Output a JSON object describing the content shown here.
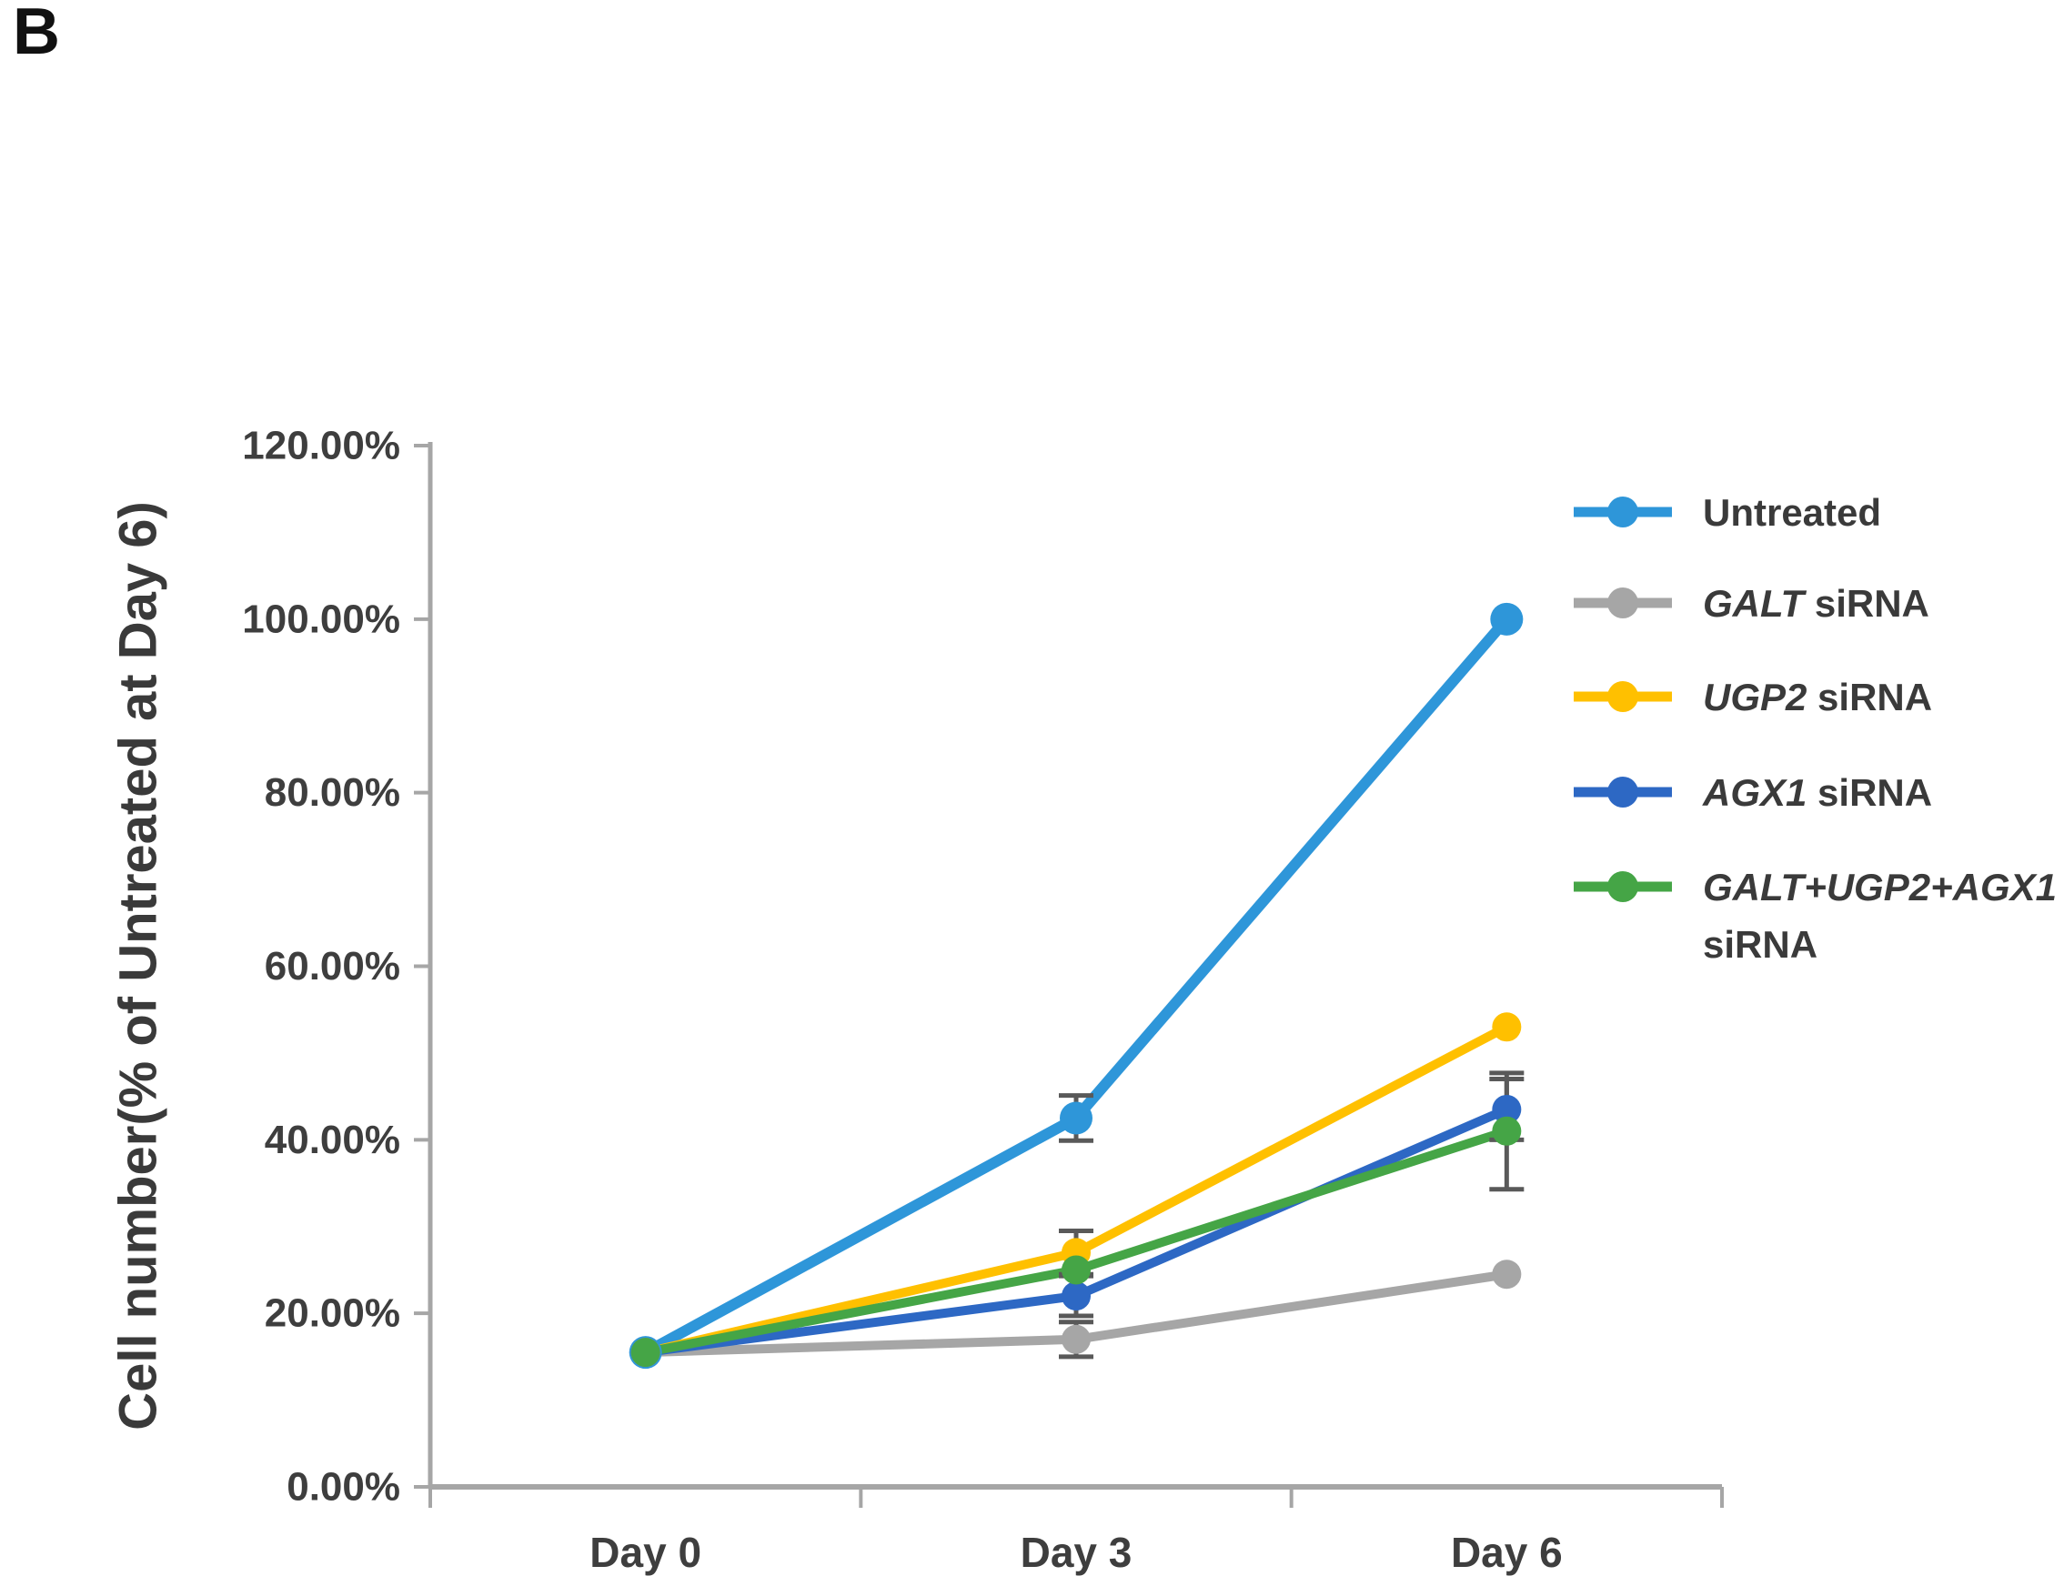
{
  "panel_label": "B",
  "figure": {
    "background": "#FFFFFF",
    "axis_color": "#A6A6A6",
    "error_bar_color": "#595959",
    "text_color": "#3E3E3E",
    "title_color": "#3A3A3A"
  },
  "chart_data": {
    "type": "line",
    "title": "",
    "xlabel": "",
    "ylabel": "Cell number(% of Untreated at Day 6)",
    "categories": [
      "Day 0",
      "Day 3",
      "Day 6"
    ],
    "ylim": [
      0,
      120
    ],
    "ytick_step": 20,
    "ytick_labels": [
      "0.00%",
      "20.00%",
      "40.00%",
      "60.00%",
      "80.00%",
      "100.00%",
      "120.00%"
    ],
    "grid": false,
    "legend_position": "right",
    "marker": "circle",
    "series": [
      {
        "name": "Untreated",
        "color": "#2E96D9",
        "values": [
          15.5,
          42.5,
          100.0
        ],
        "errors": [
          null,
          2.6,
          null
        ],
        "legend_lines": [
          [
            {
              "text": "Untreated",
              "italic": false
            }
          ]
        ]
      },
      {
        "name": "GALT siRNA",
        "color": "#A6A6A6",
        "values": [
          15.5,
          17.0,
          24.5
        ],
        "errors": [
          null,
          2.0,
          null
        ],
        "legend_lines": [
          [
            {
              "text": "GALT",
              "italic": true
            },
            {
              "text": " siRNA",
              "italic": false
            }
          ]
        ]
      },
      {
        "name": "UGP2 siRNA",
        "color": "#FFC000",
        "values": [
          15.5,
          27.0,
          53.0
        ],
        "errors": [
          null,
          2.5,
          null
        ],
        "legend_lines": [
          [
            {
              "text": "UGP2",
              "italic": true
            },
            {
              "text": " siRNA",
              "italic": false
            }
          ]
        ]
      },
      {
        "name": "AGX1 siRNA",
        "color": "#2D68C4",
        "values": [
          15.5,
          22.0,
          43.5
        ],
        "errors": [
          null,
          2.3,
          3.5
        ],
        "legend_lines": [
          [
            {
              "text": "AGX1",
              "italic": true
            },
            {
              "text": " siRNA",
              "italic": false
            }
          ]
        ]
      },
      {
        "name": "GALT+UGP2+AGX1 siRNA",
        "color": "#45A546",
        "values": [
          15.5,
          25.0,
          41.0
        ],
        "errors": [
          null,
          null,
          6.7
        ],
        "legend_lines": [
          [
            {
              "text": "GALT+UGP2+AGX1",
              "italic": true
            }
          ],
          [
            {
              "text": "siRNA",
              "italic": false
            }
          ]
        ]
      }
    ]
  }
}
